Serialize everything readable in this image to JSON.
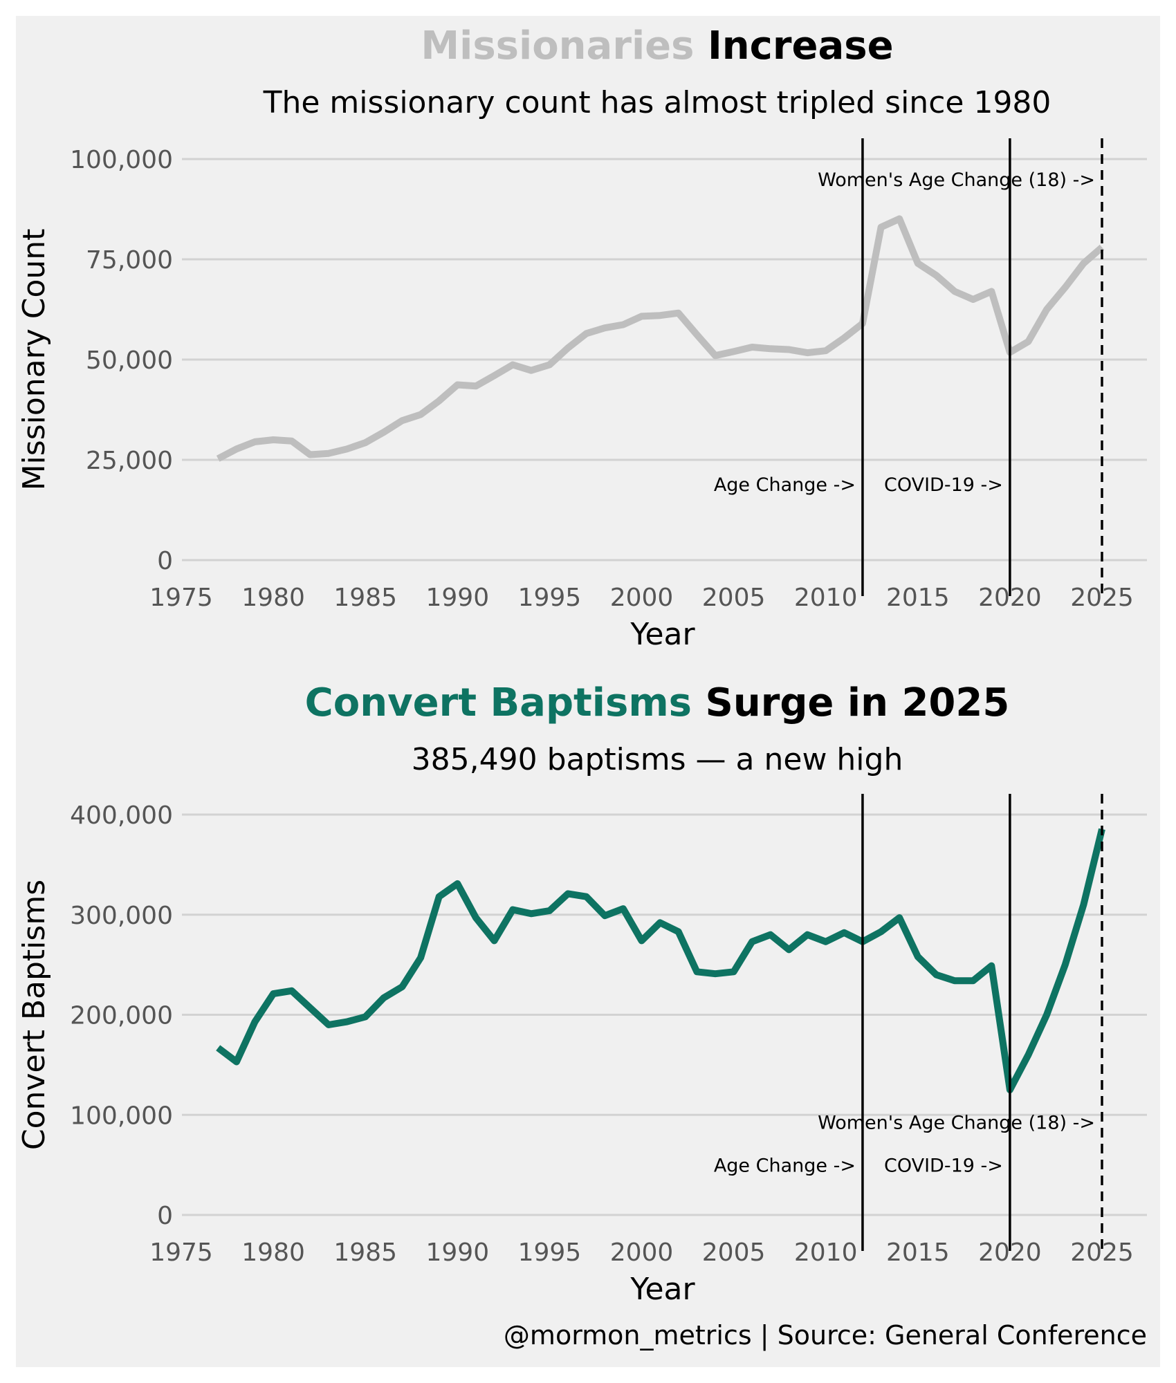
{
  "credit": "@mormon_metrics | Source: General Conference",
  "colors": {
    "background": "#f0f0f0",
    "gridline": "#d2d2d2",
    "tick_text": "#555555",
    "missionary_line": "#bebebe",
    "baptism_line": "#0e7362",
    "text_dark": "#000000"
  },
  "chart_data": [
    {
      "type": "line",
      "title_highlight": "Missionaries",
      "title_rest": "Increase",
      "title_highlight_color": "#bebebe",
      "subtitle": "The missionary count has almost tripled since 1980",
      "xlabel": "Year",
      "ylabel": "Missionary Count",
      "xlim": [
        1975,
        2027
      ],
      "ylim": [
        0,
        100000
      ],
      "x_ticks": [
        1975,
        1980,
        1985,
        1990,
        1995,
        2000,
        2005,
        2010,
        2015,
        2020,
        2025
      ],
      "y_ticks": [
        0,
        25000,
        50000,
        75000,
        100000
      ],
      "x_tick_labels": [
        "1975",
        "1980",
        "1985",
        "1990",
        "1995",
        "2000",
        "2005",
        "2010",
        "2015",
        "2020",
        "2025"
      ],
      "y_tick_labels": [
        "0",
        "25,000",
        "50,000",
        "75,000",
        "100,000"
      ],
      "grid": true,
      "series": [
        {
          "name": "Missionary Count",
          "color": "#bebebe",
          "x": [
            1977,
            1978,
            1979,
            1980,
            1981,
            1982,
            1983,
            1984,
            1985,
            1986,
            1987,
            1988,
            1989,
            1990,
            1991,
            1992,
            1993,
            1994,
            1995,
            1996,
            1997,
            1998,
            1999,
            2000,
            2001,
            2002,
            2003,
            2004,
            2005,
            2006,
            2007,
            2008,
            2009,
            2010,
            2011,
            2012,
            2013,
            2014,
            2015,
            2016,
            2017,
            2018,
            2019,
            2020,
            2021,
            2022,
            2023,
            2024,
            2025
          ],
          "values": [
            25300,
            27700,
            29500,
            30000,
            29700,
            26300,
            26600,
            27700,
            29300,
            31900,
            34800,
            36300,
            39700,
            43700,
            43400,
            46000,
            48700,
            47300,
            48700,
            52900,
            56500,
            57900,
            58700,
            60800,
            61000,
            61600,
            56200,
            51000,
            52000,
            53100,
            52700,
            52500,
            51700,
            52200,
            55400,
            59000,
            83000,
            85100,
            74000,
            71000,
            67000,
            65000,
            67000,
            51800,
            54500,
            62500,
            68000,
            74000,
            78000
          ]
        }
      ],
      "events": [
        {
          "x": 2012,
          "label": "Age Change ->",
          "style": "solid"
        },
        {
          "x": 2020,
          "label": "COVID-19 ->",
          "style": "solid"
        },
        {
          "x": 2025,
          "label": "Women's Age Change (18) ->",
          "style": "dashed"
        }
      ],
      "event_label_y": {
        "Age Change ->": 19000,
        "COVID-19 ->": 19000,
        "Women's Age Change (18) ->": 95000
      }
    },
    {
      "type": "line",
      "title_highlight": "Convert Baptisms",
      "title_rest": "Surge in 2025",
      "title_highlight_color": "#0e7362",
      "subtitle": "385,490 baptisms — a new high",
      "xlabel": "Year",
      "ylabel": "Convert Baptisms",
      "xlim": [
        1975,
        2027
      ],
      "ylim": [
        0,
        400000
      ],
      "x_ticks": [
        1975,
        1980,
        1985,
        1990,
        1995,
        2000,
        2005,
        2010,
        2015,
        2020,
        2025
      ],
      "y_ticks": [
        0,
        100000,
        200000,
        300000,
        400000
      ],
      "x_tick_labels": [
        "1975",
        "1980",
        "1985",
        "1990",
        "1995",
        "2000",
        "2005",
        "2010",
        "2015",
        "2020",
        "2025"
      ],
      "y_tick_labels": [
        "0",
        "100,000",
        "200,000",
        "300,000",
        "400,000"
      ],
      "grid": true,
      "series": [
        {
          "name": "Convert Baptisms",
          "color": "#0e7362",
          "x": [
            1977,
            1978,
            1979,
            1980,
            1981,
            1982,
            1983,
            1984,
            1985,
            1986,
            1987,
            1988,
            1989,
            1990,
            1991,
            1992,
            1993,
            1994,
            1995,
            1996,
            1997,
            1998,
            1999,
            2000,
            2001,
            2002,
            2003,
            2004,
            2005,
            2006,
            2007,
            2008,
            2009,
            2010,
            2011,
            2012,
            2013,
            2014,
            2015,
            2016,
            2017,
            2018,
            2019,
            2020,
            2021,
            2022,
            2023,
            2024,
            2025
          ],
          "values": [
            167000,
            153000,
            193000,
            221000,
            224000,
            207000,
            190000,
            193000,
            198000,
            217000,
            228000,
            257000,
            318000,
            331000,
            297000,
            274000,
            305000,
            301000,
            304000,
            321000,
            318000,
            299000,
            306000,
            274000,
            292000,
            283000,
            243000,
            241000,
            243000,
            273000,
            280000,
            265000,
            280000,
            273000,
            282000,
            273000,
            283000,
            297000,
            258000,
            240000,
            234000,
            234000,
            249000,
            125000,
            160000,
            200000,
            250000,
            310000,
            385490
          ]
        }
      ],
      "events": [
        {
          "x": 2012,
          "label": "Age Change ->",
          "style": "solid"
        },
        {
          "x": 2020,
          "label": "COVID-19 ->",
          "style": "solid"
        },
        {
          "x": 2025,
          "label": "Women's Age Change (18) ->",
          "style": "dashed"
        }
      ],
      "event_label_y": {
        "Age Change ->": 50000,
        "COVID-19 ->": 50000,
        "Women's Age Change (18) ->": 93000
      }
    }
  ]
}
